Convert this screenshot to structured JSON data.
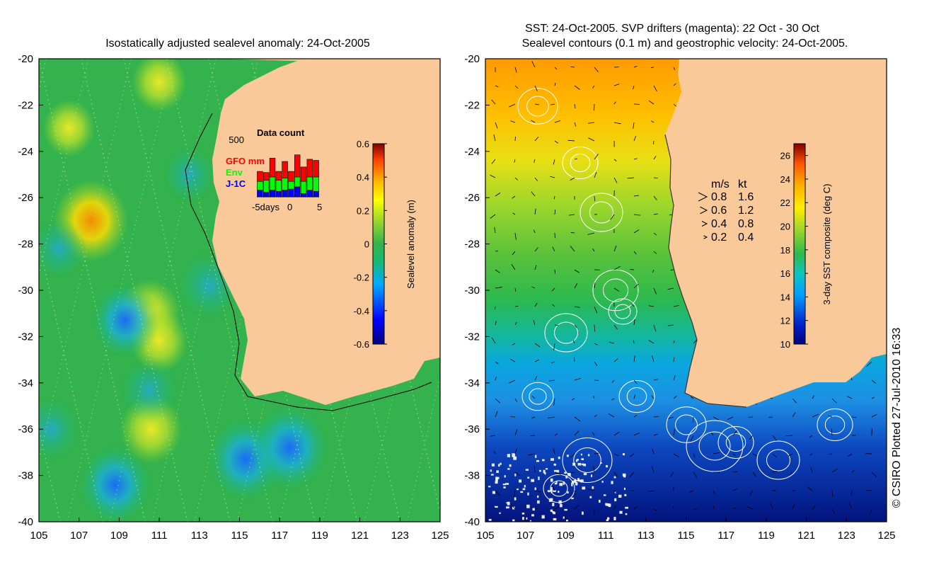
{
  "left_title": "Isostatically adjusted sealevel anomaly: 24-Oct-2005",
  "right_title_line1": "SST: 24-Oct-2005. SVP drifters (magenta): 22 Oct - 30 Oct",
  "right_title_line2": "Sealevel contours (0.1 m) and geostrophic velocity: 24-Oct-2005.",
  "credit": "© CSIRO Plotted 27-Jul-2010 16:33",
  "colors": {
    "land": "#f9c999",
    "ocean_green": "#33b24d",
    "drifter": "#ff00ff"
  },
  "chart_data": [
    {
      "type": "heatmap",
      "title": "Isostatically adjusted sealevel anomaly: 24-Oct-2005",
      "x_ticks": [
        "105",
        "107",
        "109",
        "111",
        "113",
        "115",
        "117",
        "119",
        "121",
        "123",
        "125"
      ],
      "y_ticks": [
        "-20",
        "-22",
        "-24",
        "-26",
        "-28",
        "-30",
        "-32",
        "-34",
        "-36",
        "-38",
        "-40"
      ],
      "xlim": [
        105,
        125
      ],
      "ylim": [
        -40,
        -20
      ],
      "colorbar": {
        "label": "Sealevel anomaly (m)",
        "ticks": [
          "0.6",
          "0.4",
          "0.2",
          "0",
          "-0.2",
          "-0.4",
          "-0.6"
        ],
        "range": [
          -0.6,
          0.6
        ]
      },
      "features": [
        {
          "lon": 107.6,
          "lat": -27.0,
          "value": 0.28
        },
        {
          "lon": 110.6,
          "lat": -36.0,
          "value": 0.18
        },
        {
          "lon": 110.5,
          "lat": -31.0,
          "value": 0.18
        },
        {
          "lon": 111.0,
          "lat": -32.2,
          "value": 0.14
        },
        {
          "lon": 111.0,
          "lat": -21.0,
          "value": 0.12
        },
        {
          "lon": 106.5,
          "lat": -23.0,
          "value": 0.1
        },
        {
          "lon": 115.3,
          "lat": -37.3,
          "value": -0.28
        },
        {
          "lon": 117.5,
          "lat": -36.8,
          "value": -0.3
        },
        {
          "lon": 109.3,
          "lat": -31.3,
          "value": -0.22
        },
        {
          "lon": 108.8,
          "lat": -38.4,
          "value": -0.25
        },
        {
          "lon": 113.5,
          "lat": -29.8,
          "value": -0.18
        },
        {
          "lon": 110.5,
          "lat": -34.3,
          "value": -0.15
        },
        {
          "lon": 105.6,
          "lat": -36.0,
          "value": -0.15
        },
        {
          "lon": 106.0,
          "lat": -28.2,
          "value": -0.12
        },
        {
          "lon": 112.5,
          "lat": -25.0,
          "value": -0.1
        }
      ],
      "inset": {
        "title": "Data count",
        "ymax_label": "500",
        "x_labels": [
          "-5days",
          "0",
          "5"
        ],
        "legend": [
          {
            "name": "GFO mm",
            "color": "#ff0000"
          },
          {
            "name": "Env",
            "color": "#00ff00"
          },
          {
            "name": "J-1C",
            "color": "#0000ff"
          }
        ],
        "bars": [
          {
            "day": -5,
            "j1c": 60,
            "env": 80,
            "gfo": 90
          },
          {
            "day": -4,
            "j1c": 40,
            "env": 110,
            "gfo": 70
          },
          {
            "day": -3,
            "j1c": 60,
            "env": 120,
            "gfo": 170
          },
          {
            "day": -2,
            "j1c": 50,
            "env": 100,
            "gfo": 80
          },
          {
            "day": -1,
            "j1c": 60,
            "env": 110,
            "gfo": 150
          },
          {
            "day": 0,
            "j1c": 70,
            "env": 70,
            "gfo": 90
          },
          {
            "day": 1,
            "j1c": 90,
            "env": 90,
            "gfo": 200
          },
          {
            "day": 2,
            "j1c": 30,
            "env": 110,
            "gfo": 130
          },
          {
            "day": 3,
            "j1c": 60,
            "env": 120,
            "gfo": 160
          },
          {
            "day": 4,
            "j1c": 50,
            "env": 130,
            "gfo": 150
          }
        ]
      }
    },
    {
      "type": "heatmap",
      "title": "SST: 24-Oct-2005. SVP drifters (magenta): 22 Oct - 30 Oct / Sealevel contours (0.1 m) and geostrophic velocity: 24-Oct-2005.",
      "x_ticks": [
        "105",
        "107",
        "109",
        "111",
        "113",
        "115",
        "117",
        "119",
        "121",
        "123",
        "125"
      ],
      "y_ticks": [
        "-20",
        "-22",
        "-24",
        "-26",
        "-28",
        "-30",
        "-32",
        "-34",
        "-36",
        "-38",
        "-40"
      ],
      "xlim": [
        105,
        125
      ],
      "ylim": [
        -40,
        -20
      ],
      "colorbar": {
        "label": "3-day SST composite (deg C)",
        "ticks": [
          "26",
          "24",
          "22",
          "20",
          "18",
          "16",
          "14",
          "12",
          "10"
        ],
        "range": [
          10,
          27
        ]
      },
      "sst_by_latitude": [
        {
          "lat": -20,
          "value": 25
        },
        {
          "lat": -23,
          "value": 23
        },
        {
          "lat": -26,
          "value": 20.5
        },
        {
          "lat": -29,
          "value": 19
        },
        {
          "lat": -31.5,
          "value": 17.5
        },
        {
          "lat": -33,
          "value": 15
        },
        {
          "lat": -35,
          "value": 14.5
        },
        {
          "lat": -37,
          "value": 13.5
        },
        {
          "lat": -40,
          "value": 11
        }
      ],
      "velocity_key": {
        "headers": [
          "m/s",
          "kt"
        ],
        "rows": [
          [
            "0.8",
            "1.6"
          ],
          [
            "0.6",
            "1.2"
          ],
          [
            "0.4",
            "0.8"
          ],
          [
            "0.2",
            "0.4"
          ]
        ]
      }
    }
  ]
}
